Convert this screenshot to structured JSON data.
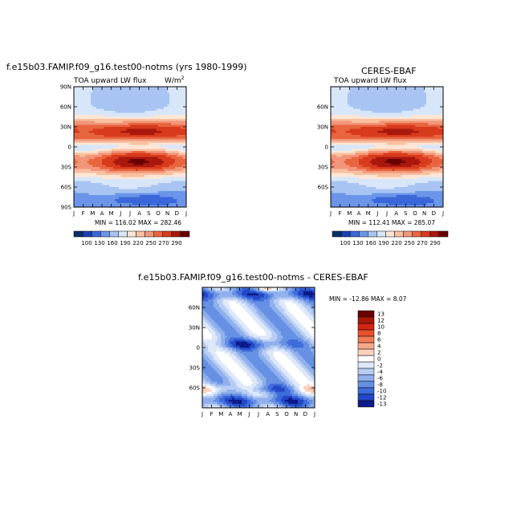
{
  "panels": {
    "left": {
      "title": "f.e15b03.FAMIP.f09_g16.test00-notms (yrs 1980-1999)",
      "left_label": "TOA upward LW flux",
      "units_base": "W/m",
      "units_exp": "2",
      "minmax": "MIN = 116.02 MAX = 282.46"
    },
    "right": {
      "title": "CERES-EBAF",
      "left_label": "TOA upward LW flux",
      "minmax": "MIN = 112.41 MAX = 285.07"
    },
    "diff": {
      "title": "f.e15b03.FAMIP.f09_g16.test00-notms - CERES-EBAF",
      "minmax": "MIN = -12.86 MAX =   8.07"
    }
  },
  "chart_data": [
    {
      "type": "heatmap",
      "title": "f.e15b03.FAMIP.f09_g16.test00-notms (yrs 1980-1999)",
      "x": [
        "J",
        "F",
        "M",
        "A",
        "M",
        "J",
        "J",
        "A",
        "S",
        "O",
        "N",
        "D",
        "J"
      ],
      "y_ticks_left": [
        "90N",
        "60N",
        "30N",
        "0",
        "30S",
        "60S",
        "90S"
      ],
      "ylim": [
        -90,
        90
      ],
      "colorbar_levels": [
        "100",
        "130",
        "160",
        "190",
        "220",
        "250",
        "270",
        "290"
      ],
      "min": 116.02,
      "max": 282.46
    },
    {
      "type": "heatmap",
      "title": "CERES-EBAF",
      "x": [
        "J",
        "F",
        "M",
        "A",
        "M",
        "J",
        "J",
        "A",
        "S",
        "O",
        "N",
        "D",
        "J"
      ],
      "y_ticks_left": [
        "60N",
        "30N",
        "0",
        "30S",
        "60S"
      ],
      "ylim": [
        -90,
        90
      ],
      "colorbar_levels": [
        "100",
        "130",
        "160",
        "190",
        "220",
        "250",
        "270",
        "290"
      ],
      "min": 112.41,
      "max": 285.07
    },
    {
      "type": "heatmap",
      "title": "f.e15b03.FAMIP.f09_g16.test00-notms - CERES-EBAF",
      "x": [
        "J",
        "F",
        "M",
        "A",
        "M",
        "J",
        "J",
        "A",
        "S",
        "O",
        "N",
        "D",
        "J"
      ],
      "y_ticks_left": [
        "60N",
        "30N",
        "0",
        "30S",
        "60S"
      ],
      "ylim": [
        -90,
        90
      ],
      "colorbar_levels": [
        "13",
        "12",
        "10",
        "8",
        "6",
        "4",
        "2",
        "0",
        "-2",
        "-4",
        "-6",
        "-8",
        "-10",
        "-12",
        "-13"
      ],
      "min": -12.86,
      "max": 8.07
    }
  ],
  "colors": {
    "abs_scale": [
      "#08306b",
      "#1c3fb3",
      "#3a67d9",
      "#6b95e8",
      "#a7c4f2",
      "#d8e6fa",
      "#fde6d6",
      "#f8c0a1",
      "#f2967a",
      "#e8653f",
      "#d83a1d",
      "#a8180c",
      "#6b0000"
    ],
    "diff_scale": [
      "#6b0000",
      "#a8180c",
      "#d32612",
      "#e8502e",
      "#f07b56",
      "#f6a98a",
      "#fbd2bf",
      "#ffffff",
      "#dde8fa",
      "#b8cdf3",
      "#8fb0ec",
      "#6690e4",
      "#3f6cdb",
      "#2248c7",
      "#0d1a8a"
    ]
  }
}
